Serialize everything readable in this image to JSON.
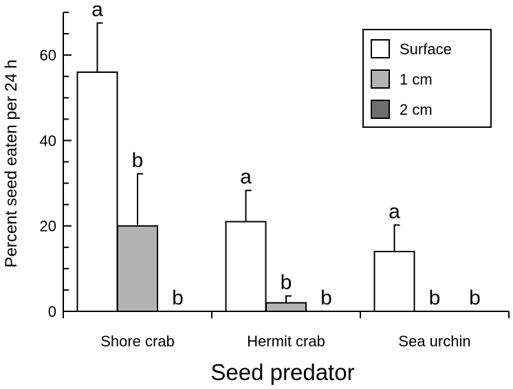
{
  "chart_data": {
    "type": "bar",
    "title": "",
    "xlabel": "Seed predator",
    "ylabel": "Percent seed eaten per 24 h",
    "ylim": [
      0,
      70
    ],
    "yticks": [
      0,
      20,
      40,
      60
    ],
    "grid": false,
    "legend_position": "top-right",
    "categories": [
      "Shore crab",
      "Hermit crab",
      "Sea urchin"
    ],
    "series": [
      {
        "name": "Surface",
        "color": "#ffffff",
        "values": [
          56,
          21,
          14
        ],
        "errors": [
          11.5,
          7.3,
          6.2
        ],
        "labels": [
          "a",
          "a",
          "a"
        ]
      },
      {
        "name": "1 cm",
        "color": "#b3b3b3",
        "values": [
          20,
          2,
          0
        ],
        "errors": [
          12.2,
          1.6,
          0
        ],
        "labels": [
          "b",
          "b",
          "b"
        ]
      },
      {
        "name": "2 cm",
        "color": "#6e6e6e",
        "values": [
          0,
          0,
          0
        ],
        "errors": [
          0,
          0,
          0
        ],
        "labels": [
          "b",
          "b",
          "b"
        ]
      }
    ]
  }
}
